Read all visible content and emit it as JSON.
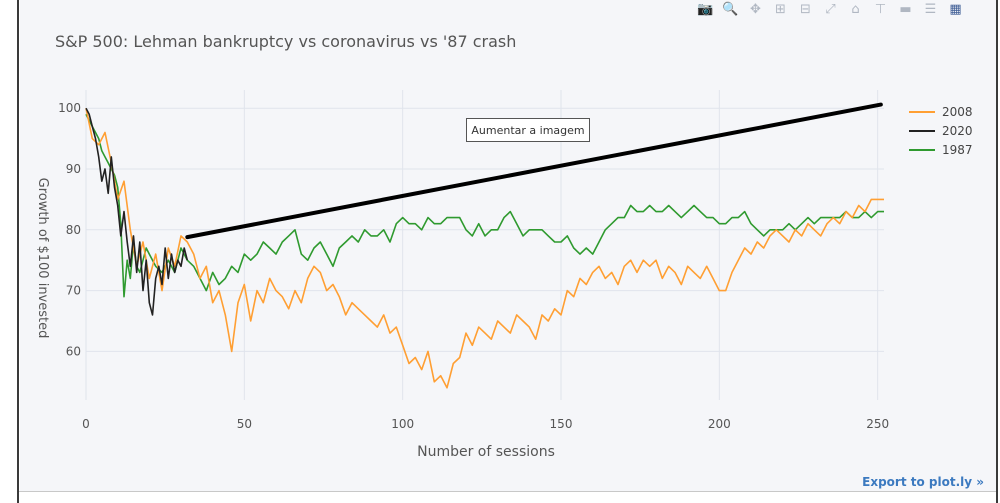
{
  "toolbar": {
    "icons": [
      "camera-icon",
      "zoom-icon",
      "pan-icon",
      "zoom-in-icon",
      "zoom-out-icon",
      "autoscale-icon",
      "reset-icon",
      "spike-icon",
      "hover-closest-icon",
      "hover-compare-icon",
      "plotly-logo-icon"
    ]
  },
  "export_label": "Export to plot.ly »",
  "tooltip_text": "Aumentar a imagem",
  "colors": {
    "s2008": "#ff9f33",
    "s2020": "#222222",
    "s1987": "#2f9a2f",
    "grid": "#e0e4ec",
    "annotation": "#000000"
  },
  "chart_data": {
    "type": "line",
    "title": "S&P 500: Lehman bankruptcy vs coronavirus vs '87 crash",
    "xlabel": "Number of sessions",
    "ylabel": "Growth of $100 invested",
    "xlim": [
      0,
      252
    ],
    "ylim": [
      52,
      103
    ],
    "xticks": [
      0,
      50,
      100,
      150,
      200,
      250
    ],
    "yticks": [
      60,
      70,
      80,
      90,
      100
    ],
    "legend_position": "top-right",
    "annotation_line": {
      "x": [
        32,
        251
      ],
      "y": [
        78.8,
        100.6
      ]
    },
    "series": [
      {
        "name": "2008",
        "x": [
          0,
          2,
          4,
          6,
          8,
          10,
          12,
          14,
          16,
          18,
          20,
          22,
          24,
          26,
          28,
          30,
          32,
          34,
          36,
          38,
          40,
          42,
          44,
          46,
          48,
          50,
          52,
          54,
          56,
          58,
          60,
          62,
          64,
          66,
          68,
          70,
          72,
          74,
          76,
          78,
          80,
          82,
          84,
          86,
          88,
          90,
          92,
          94,
          96,
          98,
          100,
          102,
          104,
          106,
          108,
          110,
          112,
          114,
          116,
          118,
          120,
          122,
          124,
          126,
          128,
          130,
          132,
          134,
          136,
          138,
          140,
          142,
          144,
          146,
          148,
          150,
          152,
          154,
          156,
          158,
          160,
          162,
          164,
          166,
          168,
          170,
          172,
          174,
          176,
          178,
          180,
          182,
          184,
          186,
          188,
          190,
          192,
          194,
          196,
          198,
          200,
          202,
          204,
          206,
          208,
          210,
          212,
          214,
          216,
          218,
          220,
          222,
          224,
          226,
          228,
          230,
          232,
          234,
          236,
          238,
          240,
          242,
          244,
          246,
          248,
          250,
          252
        ],
        "values": [
          100,
          95,
          94,
          96,
          91,
          85,
          88,
          80,
          74,
          78,
          72,
          76,
          70,
          77,
          74,
          79,
          78,
          76,
          72,
          74,
          68,
          70,
          66,
          60,
          68,
          71,
          65,
          70,
          68,
          72,
          70,
          69,
          67,
          70,
          68,
          72,
          74,
          73,
          70,
          71,
          69,
          66,
          68,
          67,
          66,
          65,
          64,
          66,
          63,
          64,
          61,
          58,
          59,
          57,
          60,
          55,
          56,
          54,
          58,
          59,
          63,
          61,
          64,
          63,
          62,
          65,
          64,
          63,
          66,
          65,
          64,
          62,
          66,
          65,
          67,
          66,
          70,
          69,
          72,
          71,
          73,
          74,
          72,
          73,
          71,
          74,
          75,
          73,
          75,
          74,
          75,
          72,
          74,
          73,
          71,
          74,
          73,
          72,
          74,
          72,
          70,
          70,
          73,
          75,
          77,
          76,
          78,
          77,
          79,
          80,
          79,
          78,
          80,
          79,
          81,
          80,
          79,
          81,
          82,
          81,
          83,
          82,
          84,
          83,
          85,
          85,
          85
        ]
      },
      {
        "name": "2020",
        "x": [
          0,
          1,
          2,
          3,
          4,
          5,
          6,
          7,
          8,
          9,
          10,
          11,
          12,
          13,
          14,
          15,
          16,
          17,
          18,
          19,
          20,
          21,
          22,
          23,
          24,
          25,
          26,
          27,
          28,
          29,
          30,
          31,
          32
        ],
        "values": [
          100,
          99,
          97,
          95,
          92,
          88,
          90,
          86,
          92,
          87,
          84,
          79,
          83,
          78,
          74,
          79,
          73,
          78,
          70,
          75,
          68,
          66,
          72,
          74,
          71,
          77,
          72,
          76,
          73,
          75,
          74,
          77,
          75
        ]
      },
      {
        "name": "1987",
        "x": [
          0,
          1,
          2,
          3,
          4,
          5,
          6,
          7,
          8,
          9,
          10,
          11,
          12,
          13,
          14,
          15,
          16,
          17,
          18,
          19,
          20,
          22,
          24,
          26,
          28,
          30,
          32,
          34,
          36,
          38,
          40,
          42,
          44,
          46,
          48,
          50,
          52,
          54,
          56,
          58,
          60,
          62,
          64,
          66,
          68,
          70,
          72,
          74,
          76,
          78,
          80,
          82,
          84,
          86,
          88,
          90,
          92,
          94,
          96,
          98,
          100,
          102,
          104,
          106,
          108,
          110,
          112,
          114,
          116,
          118,
          120,
          122,
          124,
          126,
          128,
          130,
          132,
          134,
          136,
          138,
          140,
          142,
          144,
          146,
          148,
          150,
          152,
          154,
          156,
          158,
          160,
          162,
          164,
          166,
          168,
          170,
          172,
          174,
          176,
          178,
          180,
          182,
          184,
          186,
          188,
          190,
          192,
          194,
          196,
          198,
          200,
          202,
          204,
          206,
          208,
          210,
          212,
          214,
          216,
          218,
          220,
          222,
          224,
          226,
          228,
          230,
          232,
          234,
          236,
          238,
          240,
          242,
          244,
          246,
          248,
          250,
          252
        ],
        "values": [
          99,
          98,
          97,
          96,
          95,
          93,
          92,
          91,
          90,
          89,
          87,
          81,
          69,
          75,
          72,
          78,
          74,
          73,
          75,
          77,
          76,
          74,
          73,
          75,
          73,
          77,
          75,
          74,
          72,
          70,
          73,
          71,
          72,
          74,
          73,
          76,
          75,
          76,
          78,
          77,
          76,
          78,
          79,
          80,
          76,
          75,
          77,
          78,
          76,
          74,
          77,
          78,
          79,
          78,
          80,
          79,
          79,
          80,
          78,
          81,
          82,
          81,
          81,
          80,
          82,
          81,
          81,
          82,
          82,
          82,
          80,
          79,
          81,
          79,
          80,
          80,
          82,
          83,
          81,
          79,
          80,
          80,
          80,
          79,
          78,
          78,
          79,
          77,
          76,
          77,
          76,
          78,
          80,
          81,
          82,
          82,
          84,
          83,
          83,
          84,
          83,
          83,
          84,
          83,
          82,
          83,
          84,
          83,
          82,
          82,
          81,
          81,
          82,
          82,
          83,
          81,
          80,
          79,
          80,
          80,
          80,
          81,
          80,
          81,
          82,
          81,
          82,
          82,
          82,
          82,
          83,
          82,
          82,
          83,
          82,
          83,
          83
        ]
      }
    ]
  }
}
